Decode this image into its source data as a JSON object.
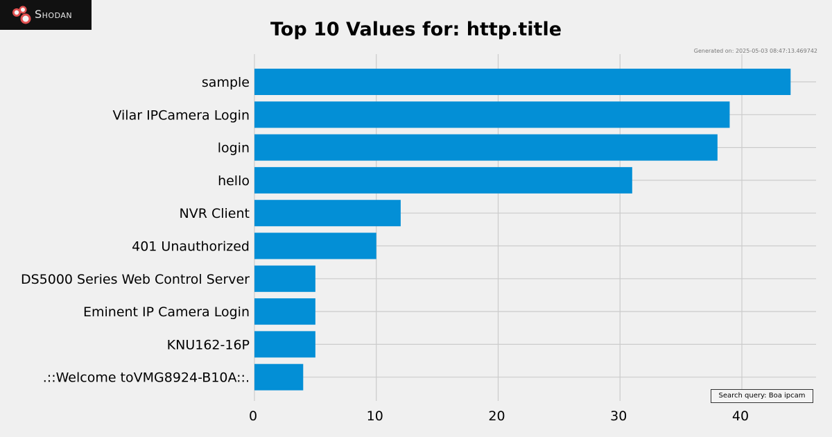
{
  "brand": {
    "name": "Shodan",
    "logo_icon": "shodan-logo-icon",
    "logo_color": "#e05050"
  },
  "meta": {
    "generated": "Generated on: 2025-05-03 08:47:13.469742",
    "search_query": "Search query: Boa ipcam"
  },
  "colors": {
    "bar": "#038fd6",
    "grid": "#cbcbcb",
    "background": "#f0f0f0"
  },
  "chart_data": {
    "type": "bar",
    "orientation": "horizontal",
    "title": "Top 10 Values for: http.title",
    "xlabel": "",
    "ylabel": "",
    "categories": [
      "sample",
      "Vilar IPCamera Login",
      "login",
      "hello",
      "NVR Client",
      "401 Unauthorized",
      "DS5000 Series Web Control Server",
      "Eminent IP Camera Login",
      "KNU162-16P",
      ".::Welcome toVMG8924-B10A::."
    ],
    "values": [
      44,
      39,
      38,
      31,
      12,
      10,
      5,
      5,
      5,
      4
    ],
    "xlim": [
      0,
      46
    ],
    "xticks": [
      0,
      10,
      20,
      30,
      40
    ],
    "grid": true,
    "legend": "none"
  }
}
